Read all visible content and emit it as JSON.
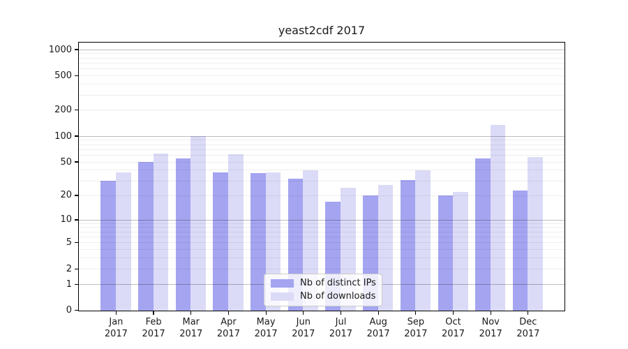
{
  "title": "yeast2cdf 2017",
  "chart_data": {
    "type": "bar",
    "title": "yeast2cdf 2017",
    "scale": "log10(1+x)",
    "grid": "major dark lines at 1,10,100,1000; faint minor lines at 2-9, 20-90, 200-900",
    "legend_position": "inside bottom-center",
    "xlabel": "",
    "ylabel": "",
    "ylim": [
      0,
      1200
    ],
    "y_ticks": [
      0,
      1,
      2,
      5,
      10,
      20,
      50,
      100,
      200,
      500,
      1000
    ],
    "major_gridlines": [
      1,
      10,
      100,
      1000
    ],
    "minor_gridlines": [
      2,
      3,
      4,
      5,
      6,
      7,
      8,
      9,
      20,
      30,
      40,
      50,
      60,
      70,
      80,
      90,
      200,
      300,
      400,
      500,
      600,
      700,
      800,
      900
    ],
    "categories": [
      "Jan 2017",
      "Feb 2017",
      "Mar 2017",
      "Apr 2017",
      "May 2017",
      "Jun 2017",
      "Jul 2017",
      "Aug 2017",
      "Sep 2017",
      "Oct 2017",
      "Nov 2017",
      "Dec 2017"
    ],
    "series": [
      {
        "name": "Nb of distinct IPs",
        "color": "#a4a4f1",
        "values": [
          30,
          50,
          55,
          38,
          37,
          32,
          17,
          20,
          31,
          20,
          55,
          23
        ]
      },
      {
        "name": "Nb of downloads",
        "color": "#dbdbf7",
        "values": [
          38,
          63,
          100,
          62,
          38,
          40,
          25,
          27,
          40,
          22,
          135,
          58
        ]
      }
    ]
  }
}
